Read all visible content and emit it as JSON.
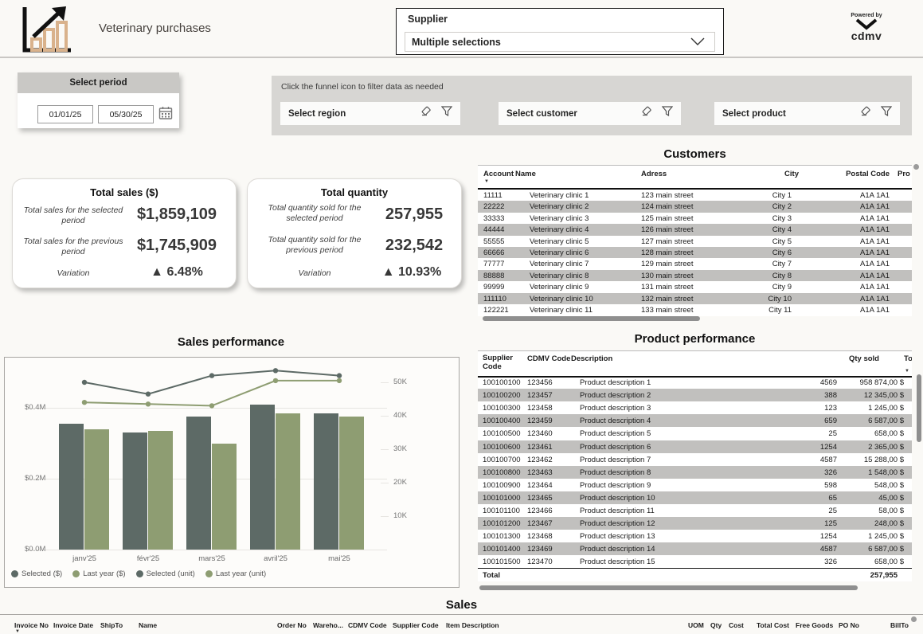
{
  "header": {
    "title": "Veterinary purchases",
    "supplier_label": "Supplier",
    "supplier_value": "Multiple selections",
    "powered_by": "Powered by",
    "brand": "cdmv",
    "logo_bar_color": "#d9b28c"
  },
  "period": {
    "title": "Select period",
    "start": "01/01/25",
    "end": "05/30/25"
  },
  "filter_bar": {
    "hint": "Click the funnel icon to filter data as needed",
    "slicers": [
      {
        "label": "Select region"
      },
      {
        "label": "Select customer"
      },
      {
        "label": "Select product"
      }
    ]
  },
  "kpi_sales": {
    "title": "Total sales ($)",
    "rows": [
      {
        "label": "Total sales for the selected period",
        "value": "$1,859,109"
      },
      {
        "label": "Total sales for the previous period",
        "value": "$1,745,909"
      },
      {
        "label": "Variation",
        "value": "▲ 6.48%"
      }
    ]
  },
  "kpi_quantity": {
    "title": "Total quantity",
    "rows": [
      {
        "label": "Total quantity sold for the selected period",
        "value": "257,955"
      },
      {
        "label": "Total quantity sold for the previous period",
        "value": "232,542"
      },
      {
        "label": "Variation",
        "value": "▲ 10.93%"
      }
    ]
  },
  "customers": {
    "title": "Customers",
    "columns": [
      "Account",
      "Name",
      "Adress",
      "City",
      "Postal Code",
      "Pro"
    ],
    "rows": [
      [
        "11111",
        "Veterinary clinic 1",
        "123 main street",
        "City 1",
        "A1A 1A1"
      ],
      [
        "22222",
        "Veterinary clinic 2",
        "124 main street",
        "City 2",
        "A1A 1A1"
      ],
      [
        "33333",
        "Veterinary clinic 3",
        "125 main street",
        "City 3",
        "A1A 1A1"
      ],
      [
        "44444",
        "Veterinary clinic 4",
        "126 main street",
        "City 4",
        "A1A 1A1"
      ],
      [
        "55555",
        "Veterinary clinic 5",
        "127 main street",
        "City 5",
        "A1A 1A1"
      ],
      [
        "66666",
        "Veterinary clinic 6",
        "128 main street",
        "City 6",
        "A1A 1A1"
      ],
      [
        "77777",
        "Veterinary clinic 7",
        "129 main street",
        "City 7",
        "A1A 1A1"
      ],
      [
        "88888",
        "Veterinary clinic 8",
        "130 main street",
        "City 8",
        "A1A 1A1"
      ],
      [
        "99999",
        "Veterinary clinic 9",
        "131 main street",
        "City 9",
        "A1A 1A1"
      ],
      [
        "111110",
        "Veterinary clinic 10",
        "132 main street",
        "City 10",
        "A1A 1A1"
      ],
      [
        "122221",
        "Veterinary clinic 11",
        "133 main street",
        "City 11",
        "A1A 1A1"
      ]
    ]
  },
  "chart_data": {
    "type": "combo",
    "title": "Sales performance",
    "categories": [
      "janv'25",
      "févr'25",
      "mars'25",
      "avril'25",
      "mai'25"
    ],
    "series": [
      {
        "name": "Selected ($)",
        "type": "bar",
        "axis": "left",
        "color": "#5d6a66",
        "values": [
          355000,
          330000,
          375000,
          410000,
          385000
        ]
      },
      {
        "name": "Last year ($)",
        "type": "bar",
        "axis": "left",
        "color": "#8e9d72",
        "values": [
          340000,
          335000,
          300000,
          385000,
          375000
        ]
      },
      {
        "name": "Selected (unit)",
        "type": "line",
        "axis": "right",
        "color": "#5d6a66",
        "values": [
          50000,
          46500,
          52000,
          53500,
          52000
        ]
      },
      {
        "name": "Last year (unit)",
        "type": "line",
        "axis": "right",
        "color": "#8e9d72",
        "values": [
          44000,
          43500,
          43000,
          50500,
          50500
        ]
      }
    ],
    "left_axis": {
      "label_format": "$M",
      "ticks": [
        "$0.0M",
        "$0.2M",
        "$0.4M"
      ],
      "tick_values": [
        0,
        200000,
        400000
      ]
    },
    "right_axis": {
      "label_format": "K",
      "ticks": [
        "10K",
        "20K",
        "30K",
        "40K",
        "50K"
      ],
      "tick_values": [
        10000,
        20000,
        30000,
        40000,
        50000
      ]
    },
    "legend_position": "bottom-left",
    "grid": true
  },
  "products": {
    "title": "Product performance",
    "columns": [
      "Supplier Code",
      "CDMV Code",
      "Description",
      "Qty sold",
      "To"
    ],
    "rows": [
      [
        "100100100",
        "123456",
        "Product description 1",
        "4569",
        "958 874,00 $"
      ],
      [
        "100100200",
        "123457",
        "Product description 2",
        "388",
        "12 345,00 $"
      ],
      [
        "100100300",
        "123458",
        "Product description 3",
        "123",
        "1 245,00 $"
      ],
      [
        "100100400",
        "123459",
        "Product description 4",
        "659",
        "6 587,00 $"
      ],
      [
        "100100500",
        "123460",
        "Product description 5",
        "25",
        "658,00 $"
      ],
      [
        "100100600",
        "123461",
        "Product description 6",
        "1254",
        "2 365,00 $"
      ],
      [
        "100100700",
        "123462",
        "Product description 7",
        "4587",
        "15 288,00 $"
      ],
      [
        "100100800",
        "123463",
        "Product description 8",
        "326",
        "1 548,00 $"
      ],
      [
        "100100900",
        "123464",
        "Product description 9",
        "598",
        "548,00 $"
      ],
      [
        "100101000",
        "123465",
        "Product description 10",
        "65",
        "45,00 $"
      ],
      [
        "100101100",
        "123466",
        "Product description 11",
        "25",
        "58,00 $"
      ],
      [
        "100101200",
        "123467",
        "Product description 12",
        "125",
        "248,00 $"
      ],
      [
        "100101300",
        "123468",
        "Product description 13",
        "1254",
        "1 245,00 $"
      ],
      [
        "100101400",
        "123469",
        "Product description 14",
        "4587",
        "6 587,00 $"
      ],
      [
        "100101500",
        "123470",
        "Product description 15",
        "326",
        "658,00 $"
      ]
    ],
    "total_label": "Total",
    "total_value": "257,955"
  },
  "sales_table": {
    "title": "Sales",
    "columns": [
      "Invoice No",
      "Invoice Date",
      "ShipTo",
      "Name",
      "Order No",
      "Wareho...",
      "CDMV Code",
      "Supplier Code",
      "Item Description",
      "UOM",
      "Qty",
      "Cost",
      "Total Cost",
      "Free Goods",
      "PO No",
      "BillTo"
    ]
  }
}
